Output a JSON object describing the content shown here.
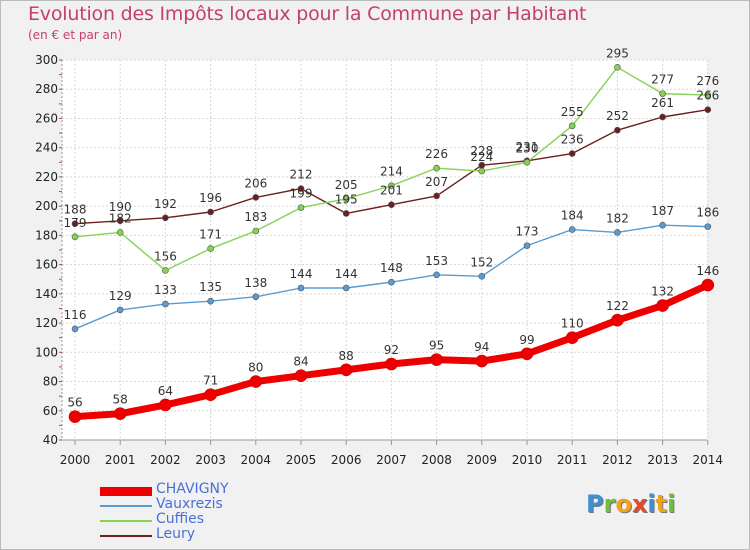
{
  "title": "Evolution des Impôts locaux pour la Commune par Habitant",
  "subtitle": "(en € et par an)",
  "logo": {
    "text": "Proxiti",
    "letters": [
      {
        "ch": "P",
        "color": "#3f8fd2"
      },
      {
        "ch": "r",
        "color": "#6fbf3f"
      },
      {
        "ch": "o",
        "color": "#f2a21b"
      },
      {
        "ch": "x",
        "color": "#e44a2f"
      },
      {
        "ch": "i",
        "color": "#3f8fd2"
      },
      {
        "ch": "t",
        "color": "#f2a21b"
      },
      {
        "ch": "i",
        "color": "#6fbf3f"
      }
    ]
  },
  "chart_data": {
    "type": "line",
    "x": [
      "2000",
      "2001",
      "2002",
      "2003",
      "2004",
      "2005",
      "2006",
      "2007",
      "2008",
      "2009",
      "2010",
      "2011",
      "2012",
      "2013",
      "2014"
    ],
    "ylim": [
      40,
      300
    ],
    "yticks": [
      40,
      60,
      80,
      100,
      120,
      140,
      160,
      180,
      200,
      220,
      240,
      260,
      280,
      300
    ],
    "grid": true,
    "legend_position": "bottom-left",
    "series": [
      {
        "name": "CHAVIGNY",
        "color": "#ee0000",
        "label_color": "#4a6fd8",
        "emphasis": true,
        "values": [
          56,
          58,
          64,
          71,
          80,
          84,
          88,
          92,
          95,
          94,
          99,
          110,
          122,
          132,
          146
        ]
      },
      {
        "name": "Vauxrezis",
        "color": "#5b9bd0",
        "label_color": "#4a6fd8",
        "values": [
          116,
          129,
          133,
          135,
          138,
          144,
          144,
          148,
          153,
          152,
          173,
          184,
          182,
          187,
          186
        ]
      },
      {
        "name": "Cuffies",
        "color": "#86d253",
        "label_color": "#4a6fd8",
        "values": [
          179,
          182,
          156,
          171,
          183,
          199,
          205,
          214,
          226,
          224,
          230,
          255,
          295,
          277,
          276
        ]
      },
      {
        "name": "Leury",
        "color": "#6b1f1f",
        "label_color": "#4a6fd8",
        "values": [
          188,
          190,
          192,
          196,
          206,
          212,
          195,
          201,
          207,
          228,
          231,
          236,
          252,
          261,
          266
        ]
      }
    ]
  }
}
